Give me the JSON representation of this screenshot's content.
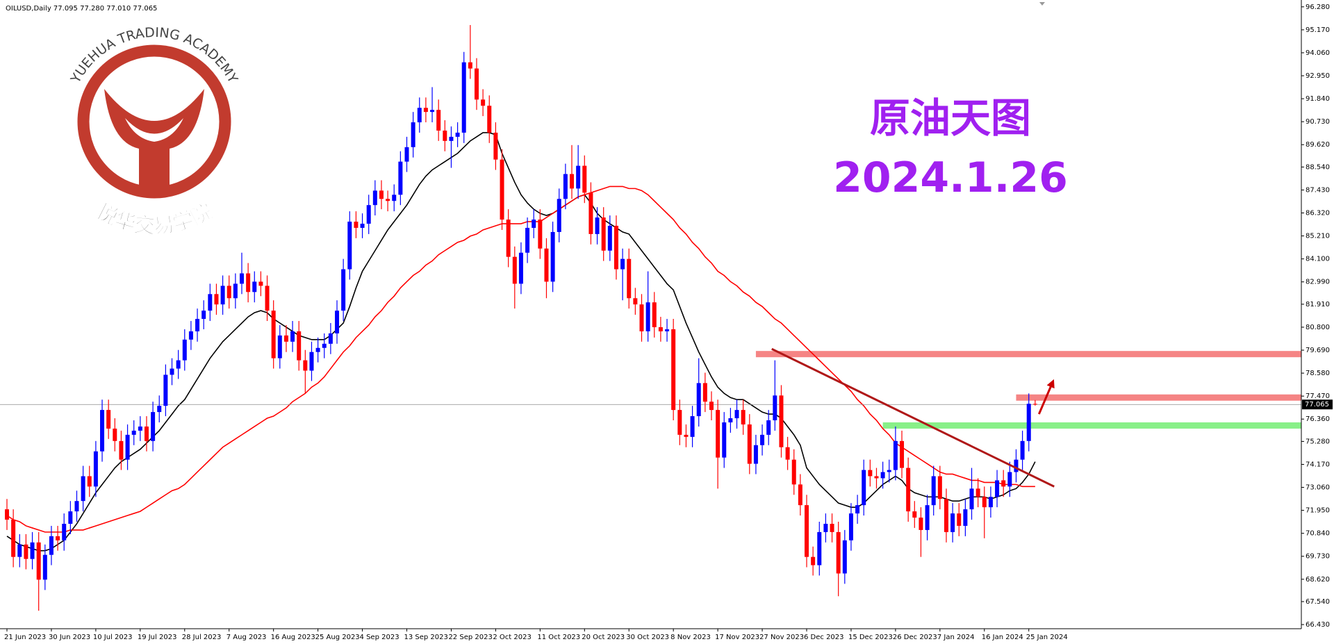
{
  "chart_data": {
    "type": "candlestick",
    "header": "OILUSD,Daily  77.095 77.280 77.010 77.065",
    "up_color": "#0000ff",
    "down_color": "#ff0000",
    "categories": [
      "21 Jun 2023",
      null,
      null,
      null,
      null,
      null,
      null,
      "30 Jun 2023",
      null,
      null,
      null,
      null,
      null,
      null,
      "10 Jul 2023",
      null,
      null,
      null,
      null,
      null,
      null,
      "19 Jul 2023",
      null,
      null,
      null,
      null,
      null,
      null,
      "28 Jul 2023",
      null,
      null,
      null,
      null,
      null,
      null,
      "7 Aug 2023",
      null,
      null,
      null,
      null,
      null,
      null,
      "16 Aug 2023",
      null,
      null,
      null,
      null,
      null,
      null,
      "25 Aug 2023",
      null,
      null,
      null,
      null,
      null,
      null,
      "4 Sep 2023",
      null,
      null,
      null,
      null,
      null,
      null,
      "13 Sep 2023",
      null,
      null,
      null,
      null,
      null,
      null,
      "22 Sep 2023",
      null,
      null,
      null,
      null,
      null,
      null,
      "2 Oct 2023",
      null,
      null,
      null,
      null,
      null,
      null,
      "11 Oct 2023",
      null,
      null,
      null,
      null,
      null,
      null,
      "20 Oct 2023",
      null,
      null,
      null,
      null,
      null,
      null,
      "30 Oct 2023",
      null,
      null,
      null,
      null,
      null,
      null,
      "8 Nov 2023",
      null,
      null,
      null,
      null,
      null,
      null,
      "17 Nov 2023",
      null,
      null,
      null,
      null,
      null,
      null,
      "27 Nov 2023",
      null,
      null,
      null,
      null,
      null,
      null,
      "6 Dec 2023",
      null,
      null,
      null,
      null,
      null,
      null,
      "15 Dec 2023",
      null,
      null,
      null,
      null,
      null,
      null,
      "26 Dec 2023",
      null,
      null,
      null,
      null,
      null,
      null,
      "7 Jan 2024",
      null,
      null,
      null,
      null,
      null,
      null,
      "16 Jan 2024",
      null,
      null,
      null,
      null,
      null,
      null,
      "25 Jan 2024",
      null
    ],
    "open": [
      72.0,
      71.5,
      69.7,
      70.3,
      69.6,
      70.4,
      68.6,
      69.8,
      70.7,
      70.5,
      71.3,
      71.9,
      72.4,
      73.6,
      73.1,
      74.8,
      76.8,
      75.9,
      75.3,
      74.4,
      75.6,
      75.8,
      76.0,
      75.3,
      76.7,
      77.0,
      78.5,
      78.8,
      79.2,
      80.2,
      80.6,
      81.2,
      81.6,
      82.4,
      81.9,
      82.8,
      82.2,
      82.9,
      83.4,
      82.5,
      83.0,
      82.8,
      81.6,
      79.3,
      80.4,
      80.1,
      80.6,
      79.2,
      78.7,
      79.6,
      79.8,
      80.0,
      80.5,
      81.6,
      83.6,
      85.9,
      85.6,
      85.8,
      86.7,
      87.4,
      87.0,
      86.9,
      87.2,
      88.8,
      89.5,
      90.7,
      91.4,
      91.2,
      91.3,
      90.3,
      89.8,
      90.0,
      90.2,
      93.6,
      93.3,
      91.8,
      91.5,
      90.2,
      88.9,
      86.0,
      84.2,
      82.9,
      84.4,
      85.6,
      86.0,
      84.6,
      83.0,
      85.4,
      87.0,
      88.2,
      87.5,
      88.6,
      87.3,
      85.3,
      86.1,
      84.5,
      85.7,
      83.6,
      84.1,
      82.2,
      81.9,
      80.6,
      82.0,
      80.8,
      80.6,
      80.7,
      76.8,
      75.6,
      75.5,
      76.5,
      78.1,
      77.2,
      76.8,
      74.5,
      76.2,
      76.4,
      76.8,
      76.1,
      74.2,
      75.1,
      75.6,
      76.3,
      77.5,
      75.0,
      74.4,
      73.2,
      72.2,
      69.7,
      69.3,
      70.9,
      71.3,
      70.9,
      68.9,
      70.5,
      71.8,
      72.2,
      73.9,
      73.6,
      73.5,
      73.8,
      73.9,
      75.3,
      74.0,
      71.9,
      71.6,
      71.0,
      72.2,
      73.6,
      72.5,
      70.9,
      71.8,
      71.2,
      72.0,
      73.0,
      72.6,
      72.1,
      72.6,
      73.4,
      73.1,
      73.8,
      74.4,
      75.3,
      77.095
    ],
    "high": [
      72.5,
      72.0,
      70.8,
      70.8,
      70.9,
      70.9,
      70.3,
      71.2,
      71.2,
      71.8,
      72.4,
      72.9,
      74.1,
      74.1,
      75.3,
      77.3,
      77.3,
      76.4,
      75.8,
      76.1,
      76.3,
      76.5,
      76.5,
      77.2,
      77.5,
      79.0,
      79.3,
      79.7,
      80.7,
      81.1,
      81.7,
      82.1,
      82.9,
      82.9,
      83.3,
      83.3,
      83.4,
      84.4,
      83.9,
      83.5,
      83.5,
      83.3,
      82.1,
      80.9,
      80.9,
      81.1,
      81.1,
      79.7,
      80.1,
      80.3,
      80.5,
      81.0,
      82.1,
      84.1,
      86.4,
      86.4,
      86.3,
      87.2,
      87.9,
      87.9,
      87.4,
      87.7,
      89.3,
      90.0,
      91.2,
      91.9,
      91.9,
      92.4,
      91.8,
      90.8,
      90.5,
      90.7,
      94.1,
      95.4,
      93.8,
      92.3,
      92.0,
      90.7,
      89.4,
      86.5,
      84.7,
      84.9,
      86.1,
      86.5,
      86.5,
      85.1,
      85.9,
      87.5,
      88.7,
      89.6,
      89.6,
      89.1,
      87.8,
      86.6,
      86.6,
      86.2,
      86.2,
      84.6,
      84.6,
      82.7,
      82.4,
      83.5,
      82.5,
      81.3,
      81.2,
      81.2,
      77.3,
      76.1,
      77.0,
      79.3,
      78.6,
      77.7,
      77.3,
      76.7,
      76.9,
      77.3,
      77.3,
      76.6,
      75.6,
      76.1,
      76.8,
      79.2,
      78.0,
      75.5,
      74.9,
      73.7,
      72.7,
      70.2,
      71.4,
      71.8,
      71.8,
      71.4,
      71.0,
      72.3,
      72.7,
      74.4,
      74.4,
      74.0,
      74.3,
      74.4,
      76.0,
      75.8,
      74.5,
      72.4,
      72.1,
      72.7,
      74.1,
      74.1,
      73.0,
      72.3,
      72.3,
      72.5,
      74.0,
      73.5,
      73.1,
      73.1,
      73.9,
      73.9,
      74.3,
      74.9,
      75.8,
      77.6,
      77.28
    ],
    "low": [
      71.0,
      69.2,
      69.2,
      69.1,
      69.1,
      67.1,
      68.1,
      69.3,
      70.0,
      70.0,
      70.8,
      71.4,
      71.9,
      72.6,
      72.6,
      74.3,
      75.4,
      74.8,
      73.9,
      73.9,
      75.1,
      75.3,
      74.8,
      74.8,
      76.2,
      76.5,
      78.0,
      78.3,
      78.7,
      79.7,
      80.1,
      80.7,
      81.1,
      81.4,
      81.4,
      81.7,
      81.7,
      82.4,
      82.0,
      82.0,
      82.3,
      81.1,
      78.8,
      78.8,
      79.6,
      79.6,
      78.7,
      77.6,
      78.2,
      79.1,
      79.3,
      79.5,
      80.0,
      81.1,
      83.1,
      85.1,
      85.1,
      85.3,
      86.2,
      86.5,
      86.4,
      86.4,
      86.7,
      88.3,
      89.0,
      90.2,
      90.7,
      90.7,
      89.8,
      89.3,
      88.5,
      89.5,
      89.7,
      92.8,
      91.3,
      91.0,
      89.7,
      88.4,
      85.5,
      83.7,
      81.7,
      82.4,
      83.9,
      85.1,
      84.1,
      82.2,
      82.5,
      84.9,
      86.5,
      87.0,
      87.0,
      86.8,
      84.8,
      84.8,
      84.0,
      84.0,
      83.1,
      82.1,
      81.7,
      81.4,
      80.1,
      80.1,
      80.3,
      80.1,
      80.1,
      76.3,
      75.1,
      75.0,
      75.0,
      76.0,
      76.7,
      76.3,
      73.0,
      74.0,
      75.7,
      75.9,
      75.6,
      73.7,
      73.7,
      74.6,
      75.1,
      75.8,
      74.5,
      73.9,
      72.7,
      71.7,
      69.2,
      68.8,
      68.8,
      70.4,
      70.4,
      67.8,
      68.4,
      70.0,
      71.3,
      71.7,
      73.1,
      73.0,
      73.0,
      73.3,
      73.4,
      73.5,
      71.4,
      71.1,
      69.7,
      70.5,
      71.7,
      72.0,
      70.4,
      70.4,
      70.7,
      70.7,
      71.5,
      72.1,
      70.6,
      71.6,
      72.1,
      72.6,
      72.6,
      73.3,
      73.9,
      74.8,
      77.01
    ],
    "close": [
      71.5,
      69.7,
      70.3,
      69.6,
      70.4,
      68.6,
      69.8,
      70.7,
      70.5,
      71.3,
      71.9,
      72.4,
      73.6,
      73.1,
      74.8,
      76.8,
      75.9,
      75.3,
      74.4,
      75.6,
      75.8,
      76.0,
      75.3,
      76.7,
      77.0,
      78.5,
      78.8,
      79.2,
      80.2,
      80.6,
      81.2,
      81.6,
      82.4,
      81.9,
      82.8,
      82.2,
      82.9,
      83.4,
      82.5,
      83.0,
      82.8,
      81.6,
      79.3,
      80.4,
      80.1,
      80.6,
      79.2,
      78.7,
      79.6,
      79.8,
      80.0,
      80.5,
      81.6,
      83.6,
      85.9,
      85.6,
      85.8,
      86.7,
      87.4,
      87.0,
      86.9,
      87.2,
      88.8,
      89.5,
      90.7,
      91.4,
      91.2,
      91.3,
      90.3,
      89.8,
      90.0,
      90.2,
      93.6,
      93.3,
      91.8,
      91.5,
      90.2,
      88.9,
      86.0,
      84.2,
      82.9,
      84.4,
      85.6,
      86.0,
      84.6,
      83.0,
      85.4,
      87.0,
      88.2,
      87.5,
      88.6,
      87.3,
      85.3,
      86.1,
      84.5,
      85.7,
      83.6,
      84.1,
      82.2,
      81.9,
      80.6,
      82.0,
      80.8,
      80.6,
      80.7,
      76.8,
      75.6,
      75.5,
      76.5,
      78.1,
      77.2,
      76.8,
      74.5,
      76.2,
      76.4,
      76.8,
      76.1,
      74.2,
      75.1,
      75.6,
      76.3,
      77.5,
      75.0,
      74.4,
      73.2,
      72.2,
      69.7,
      69.3,
      70.9,
      71.3,
      70.9,
      68.9,
      70.5,
      71.8,
      72.2,
      73.9,
      73.6,
      73.5,
      73.8,
      73.9,
      75.3,
      74.0,
      71.9,
      71.6,
      71.0,
      72.2,
      73.6,
      72.5,
      70.9,
      71.8,
      71.2,
      72.0,
      73.0,
      72.6,
      72.1,
      72.6,
      73.4,
      73.1,
      73.8,
      74.4,
      75.3,
      77.1,
      77.065
    ],
    "ma": [
      {
        "color": "#000000",
        "values": [
          70.7,
          70.5,
          70.3,
          70.2,
          70.1,
          70.0,
          70.0,
          70.1,
          70.3,
          70.5,
          70.9,
          71.3,
          71.8,
          72.3,
          72.8,
          73.2,
          73.6,
          74.0,
          74.3,
          74.5,
          74.7,
          74.9,
          75.2,
          75.5,
          75.8,
          76.2,
          76.6,
          77.0,
          77.3,
          77.8,
          78.3,
          78.8,
          79.3,
          79.7,
          80.1,
          80.4,
          80.7,
          81.0,
          81.3,
          81.5,
          81.6,
          81.5,
          81.2,
          81.0,
          80.8,
          80.6,
          80.4,
          80.3,
          80.2,
          80.2,
          80.2,
          80.4,
          80.7,
          81.0,
          81.8,
          82.7,
          83.5,
          84.0,
          84.5,
          85.0,
          85.5,
          85.9,
          86.3,
          86.7,
          87.2,
          87.7,
          88.1,
          88.4,
          88.6,
          88.8,
          89.0,
          89.2,
          89.5,
          89.8,
          90.0,
          90.2,
          90.2,
          90.1,
          89.2,
          88.5,
          87.8,
          87.2,
          86.8,
          86.5,
          86.3,
          86.2,
          86.3,
          86.5,
          86.7,
          86.9,
          87.1,
          87.2,
          86.8,
          86.3,
          86.0,
          85.8,
          85.6,
          85.4,
          85.3,
          84.9,
          84.5,
          84.1,
          83.7,
          83.3,
          82.9,
          82.6,
          81.8,
          81.0,
          80.3,
          79.6,
          79.0,
          78.4,
          77.9,
          77.6,
          77.4,
          77.3,
          77.3,
          77.1,
          76.9,
          76.7,
          76.6,
          76.6,
          76.4,
          76.0,
          75.6,
          75.1,
          74.0,
          73.6,
          73.2,
          72.9,
          72.6,
          72.3,
          72.2,
          72.1,
          72.1,
          72.3,
          72.6,
          72.9,
          73.2,
          73.4,
          73.6,
          73.4,
          73.0,
          72.8,
          72.7,
          72.6,
          72.6,
          72.6,
          72.5,
          72.4,
          72.4,
          72.5,
          72.6,
          72.6,
          72.6,
          72.5,
          72.6,
          72.7,
          72.9,
          73.0,
          73.3,
          73.7,
          74.3
        ]
      },
      {
        "color": "#ff0000",
        "values": [
          71.7,
          71.5,
          71.4,
          71.2,
          71.1,
          71.0,
          70.9,
          70.9,
          70.9,
          70.9,
          71.0,
          71.0,
          71.0,
          71.1,
          71.2,
          71.3,
          71.4,
          71.5,
          71.6,
          71.7,
          71.8,
          71.9,
          72.1,
          72.3,
          72.5,
          72.7,
          72.9,
          73.0,
          73.2,
          73.5,
          73.8,
          74.1,
          74.4,
          74.7,
          75.0,
          75.2,
          75.4,
          75.6,
          75.8,
          76.0,
          76.2,
          76.4,
          76.5,
          76.7,
          76.9,
          77.2,
          77.4,
          77.6,
          77.9,
          78.1,
          78.4,
          78.8,
          79.2,
          79.6,
          79.9,
          80.3,
          80.6,
          80.9,
          81.3,
          81.6,
          82.0,
          82.3,
          82.7,
          83.0,
          83.3,
          83.5,
          83.8,
          84.0,
          84.3,
          84.5,
          84.7,
          84.9,
          85.0,
          85.2,
          85.3,
          85.5,
          85.6,
          85.7,
          85.8,
          85.8,
          85.8,
          85.8,
          85.9,
          85.9,
          85.9,
          86.1,
          86.3,
          86.5,
          86.7,
          86.9,
          87.1,
          87.2,
          87.3,
          87.4,
          87.5,
          87.6,
          87.6,
          87.6,
          87.5,
          87.5,
          87.4,
          87.2,
          86.9,
          86.6,
          86.3,
          86.0,
          85.6,
          85.3,
          84.9,
          84.6,
          84.2,
          83.9,
          83.5,
          83.3,
          83.0,
          82.8,
          82.5,
          82.3,
          82.0,
          81.8,
          81.5,
          81.2,
          81.0,
          80.7,
          80.4,
          80.1,
          79.8,
          79.5,
          79.2,
          78.9,
          78.6,
          78.3,
          78.0,
          77.7,
          77.3,
          77.0,
          76.6,
          76.3,
          75.9,
          75.6,
          75.2,
          75.0,
          74.8,
          74.6,
          74.4,
          74.2,
          74.0,
          73.8,
          73.7,
          73.7,
          73.6,
          73.5,
          73.4,
          73.4,
          73.3,
          73.3,
          73.3,
          73.2,
          73.2,
          73.2,
          73.1,
          73.1,
          73.1
        ]
      }
    ],
    "levels": [
      {
        "value": 79.5,
        "start": 118,
        "color": "#f58484"
      },
      {
        "value": 77.4,
        "start": 159,
        "color": "#f58484"
      },
      {
        "value": 76.05,
        "start": 138,
        "color": "#88f088"
      }
    ],
    "trendline": {
      "x": [
        120.5,
        165
      ],
      "y": [
        79.75,
        73.1
      ],
      "color": "#b01818"
    },
    "arrow": {
      "x": [
        162.6,
        164.7
      ],
      "y": [
        76.6,
        78.1
      ],
      "color": "#cc0000"
    },
    "ylim": [
      66.23,
      96.61
    ],
    "yticks": [
      {
        "value": 96.28,
        "label": "96.280"
      },
      {
        "value": 95.17,
        "label": "95.170"
      },
      {
        "value": 94.06,
        "label": "94.060"
      },
      {
        "value": 92.95,
        "label": "92.950"
      },
      {
        "value": 91.84,
        "label": "91.840"
      },
      {
        "value": 90.73,
        "label": "90.730"
      },
      {
        "value": 89.62,
        "label": "89.620"
      },
      {
        "value": 88.54,
        "label": "88.540"
      },
      {
        "value": 87.43,
        "label": "87.430"
      },
      {
        "value": 86.32,
        "label": "86.320"
      },
      {
        "value": 85.21,
        "label": "85.210"
      },
      {
        "value": 84.1,
        "label": "84.100"
      },
      {
        "value": 82.99,
        "label": "82.990"
      },
      {
        "value": 81.91,
        "label": "81.910"
      },
      {
        "value": 80.8,
        "label": "80.800"
      },
      {
        "value": 79.69,
        "label": "79.690"
      },
      {
        "value": 78.58,
        "label": "78.580"
      },
      {
        "value": 77.47,
        "label": "77.470"
      },
      {
        "value": 76.36,
        "label": "76.360"
      },
      {
        "value": 75.28,
        "label": "75.280"
      },
      {
        "value": 74.17,
        "label": "74.170"
      },
      {
        "value": 73.06,
        "label": "73.060"
      },
      {
        "value": 71.95,
        "label": "71.950"
      },
      {
        "value": 70.84,
        "label": "70.840"
      },
      {
        "value": 69.73,
        "label": "69.730"
      },
      {
        "value": 68.62,
        "label": "68.620"
      },
      {
        "value": 67.54,
        "label": "67.540"
      },
      {
        "value": 66.43,
        "label": "66.430"
      }
    ]
  },
  "watermark": {
    "logo_top": "YUEHUA TRADING ACADEMY",
    "logo_bottom": "悦华交易学院",
    "title": "原油天图",
    "date": "2024.1.26"
  }
}
